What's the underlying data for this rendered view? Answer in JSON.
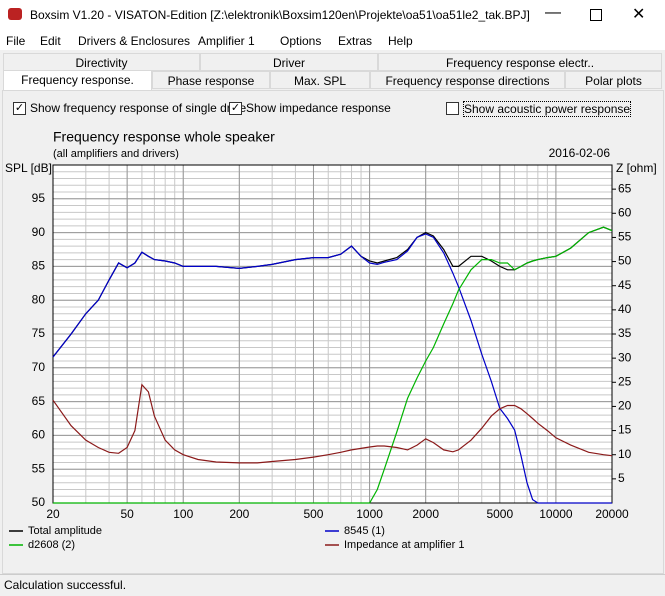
{
  "window": {
    "title": "Boxsim V1.20 - VISATON-Edition [Z:\\elektronik\\Boxsim120en\\Projekte\\oa51\\oa51le2_tak.BPJ]"
  },
  "menu": [
    "File",
    "Edit",
    "Drivers & Enclosures",
    "Amplifier 1",
    "Options",
    "Extras",
    "Help"
  ],
  "tabs": {
    "row1": [
      "Directivity",
      "Driver",
      "Frequency response electr.."
    ],
    "row2": [
      "Frequency response.",
      "Phase response",
      "Max. SPL",
      "Frequency response directions",
      "Polar plots"
    ]
  },
  "options": [
    {
      "label": "Show frequency response of single drive",
      "checked": true
    },
    {
      "label": "Show impedance response",
      "checked": true
    },
    {
      "label": "Show acoustic power response",
      "checked": false
    }
  ],
  "chart_data": {
    "type": "line",
    "title": "Frequency response whole speaker",
    "subtitle": "(all amplifiers and drivers)",
    "date": "2016-02-06",
    "y_label": "SPL [dB]",
    "y2_label": "Z [ohm]",
    "xscale": "log",
    "grid": true,
    "xlim": [
      20,
      20000
    ],
    "xticks": [
      20,
      50,
      100,
      200,
      500,
      1000,
      2000,
      5000,
      10000,
      20000
    ],
    "ylim": [
      50,
      100
    ],
    "yticks": [
      50,
      55,
      60,
      65,
      70,
      75,
      80,
      85,
      90,
      95
    ],
    "y2lim": [
      0,
      70
    ],
    "y2ticks": [
      5,
      10,
      15,
      20,
      25,
      30,
      35,
      40,
      45,
      50,
      55,
      60,
      65
    ],
    "x": [
      20,
      25,
      30,
      35,
      40,
      45,
      50,
      55,
      60,
      65,
      70,
      80,
      90,
      100,
      120,
      150,
      200,
      250,
      300,
      400,
      500,
      600,
      700,
      800,
      900,
      1000,
      1100,
      1200,
      1400,
      1600,
      1800,
      2000,
      2200,
      2500,
      2800,
      3000,
      3500,
      4000,
      4500,
      5000,
      5500,
      6000,
      6500,
      7000,
      7500,
      8000,
      9000,
      10000,
      12000,
      15000,
      18000,
      20000
    ],
    "series": [
      {
        "name": "Total amplitude",
        "color": "#000000",
        "values": [
          71.6,
          75,
          78,
          80,
          83,
          85.5,
          84.8,
          85.5,
          87.1,
          86.5,
          86,
          85.8,
          85.5,
          85,
          85,
          85,
          84.7,
          85,
          85.3,
          86,
          86.3,
          86.3,
          86.8,
          88,
          86.5,
          85.8,
          85.5,
          85.8,
          86.3,
          87.5,
          89.3,
          90,
          89.5,
          87.5,
          85,
          85,
          86.5,
          86.5,
          85.8,
          85,
          84.5,
          84.5,
          85,
          85.5,
          85.8,
          86,
          86.3,
          86.5,
          87.7,
          90,
          90.8,
          90.3
        ]
      },
      {
        "name": "8545 (1)",
        "color": "#0000c8",
        "values": [
          71.6,
          75,
          78,
          80,
          83,
          85.5,
          84.8,
          85.5,
          87.1,
          86.5,
          86,
          85.8,
          85.5,
          85,
          85,
          85,
          84.7,
          85,
          85.3,
          86,
          86.3,
          86.3,
          86.8,
          88,
          86.5,
          85.5,
          85.3,
          85.6,
          86,
          87.3,
          89.3,
          89.8,
          89.3,
          87,
          84,
          82,
          77,
          72,
          68,
          64,
          62.5,
          60.8,
          57,
          53,
          50.5,
          50,
          50,
          50,
          50,
          50,
          50,
          50
        ]
      },
      {
        "name": "d2608 (2)",
        "color": "#00b400",
        "values": [
          50,
          50,
          50,
          50,
          50,
          50,
          50,
          50,
          50,
          50,
          50,
          50,
          50,
          50,
          50,
          50,
          50,
          50,
          50,
          50,
          50,
          50,
          50,
          50,
          50,
          50,
          52,
          55,
          60.5,
          65.5,
          68.5,
          71,
          73,
          76.5,
          79.5,
          81.5,
          84.5,
          86,
          86,
          85.5,
          85.5,
          84.5,
          85,
          85.5,
          85.8,
          86,
          86.3,
          86.5,
          87.7,
          90,
          90.8,
          90.3
        ]
      },
      {
        "name": "Impedance at amplifier 1",
        "color": "#8b1a1a",
        "axis": "y2",
        "values": [
          21.3,
          16,
          13,
          11.5,
          10.5,
          10.3,
          11.5,
          15,
          24.5,
          23,
          18,
          13,
          11,
          10,
          9,
          8.5,
          8.3,
          8.3,
          8.6,
          9,
          9.5,
          10,
          10.5,
          11,
          11.3,
          11.6,
          11.8,
          11.8,
          11.5,
          11,
          12,
          13.3,
          12.5,
          11,
          10.6,
          11,
          13,
          15.5,
          18,
          19.5,
          20.2,
          20.2,
          19.5,
          18.5,
          17.5,
          16.5,
          15,
          13.5,
          12,
          10.5,
          10,
          9.8
        ]
      }
    ]
  },
  "status": "Calculation successful."
}
